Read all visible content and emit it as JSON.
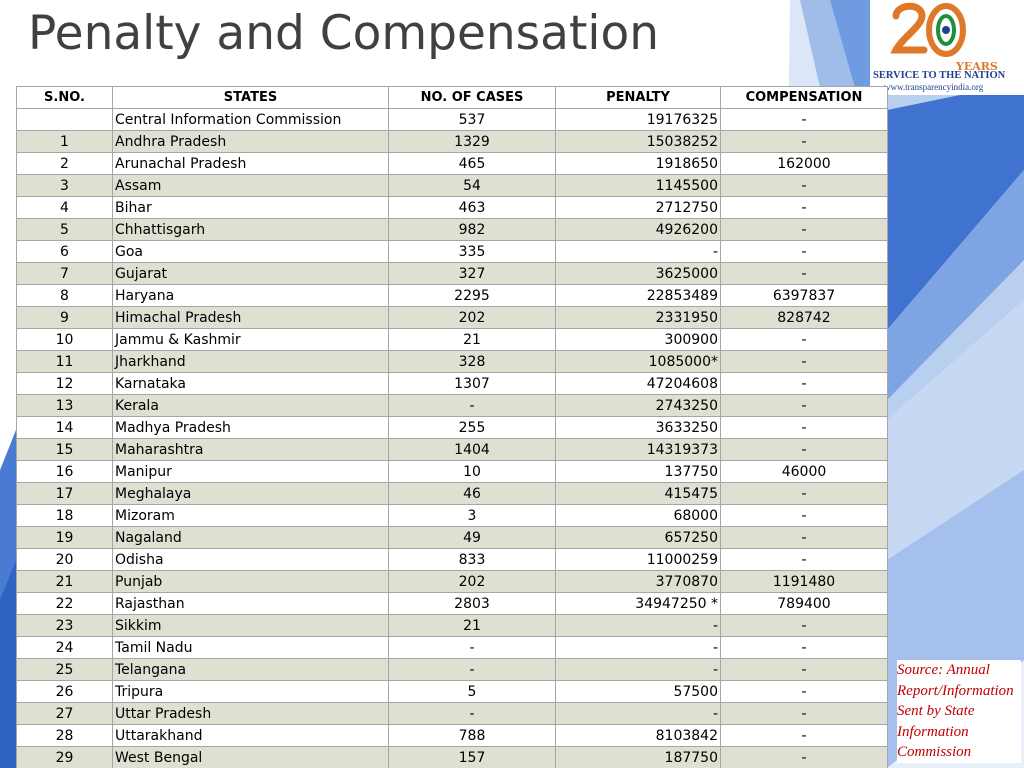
{
  "slide": {
    "title": "Penalty and Compensation",
    "logo": {
      "mark": "20",
      "years": "YEARS",
      "tagline": "SERVICE TO THE NATION",
      "url": "www.transparencyindia.org"
    },
    "source_note": "Source: Annual Report/Information Sent by State Information Commission"
  },
  "colors": {
    "title": "#404040",
    "row_shade": "#e0e0d2",
    "accent_blue": "#2e63c4",
    "source_text": "#c00000"
  },
  "table": {
    "headers": [
      "S.NO.",
      "STATES",
      "NO. OF CASES",
      "PENALTY",
      "COMPENSATION"
    ],
    "rows": [
      {
        "sno": "",
        "state": "Central Information Commission",
        "cases": "537",
        "penalty": "19176325",
        "compensation": "-"
      },
      {
        "sno": "1",
        "state": "Andhra Pradesh",
        "cases": "1329",
        "penalty": "15038252",
        "compensation": "-"
      },
      {
        "sno": "2",
        "state": "Arunachal Pradesh",
        "cases": "465",
        "penalty": "1918650",
        "compensation": "162000"
      },
      {
        "sno": "3",
        "state": "Assam",
        "cases": "54",
        "penalty": "1145500",
        "compensation": "-"
      },
      {
        "sno": "4",
        "state": "Bihar",
        "cases": "463",
        "penalty": "2712750",
        "compensation": "-"
      },
      {
        "sno": "5",
        "state": "Chhattisgarh",
        "cases": "982",
        "penalty": "4926200",
        "compensation": "-"
      },
      {
        "sno": "6",
        "state": "Goa",
        "cases": "335",
        "penalty": "-",
        "compensation": "-"
      },
      {
        "sno": "7",
        "state": "Gujarat",
        "cases": "327",
        "penalty": "3625000",
        "compensation": "-"
      },
      {
        "sno": "8",
        "state": "Haryana",
        "cases": "2295",
        "penalty": "22853489",
        "compensation": "6397837"
      },
      {
        "sno": "9",
        "state": "Himachal Pradesh",
        "cases": "202",
        "penalty": "2331950",
        "compensation": "828742"
      },
      {
        "sno": "10",
        "state": "Jammu & Kashmir",
        "cases": "21",
        "penalty": "300900",
        "compensation": "-"
      },
      {
        "sno": "11",
        "state": "Jharkhand",
        "cases": "328",
        "penalty": "1085000*",
        "compensation": "-"
      },
      {
        "sno": "12",
        "state": "Karnataka",
        "cases": "1307",
        "penalty": "47204608",
        "compensation": "-"
      },
      {
        "sno": "13",
        "state": "Kerala",
        "cases": "-",
        "penalty": "2743250",
        "compensation": "-"
      },
      {
        "sno": "14",
        "state": "Madhya Pradesh",
        "cases": "255",
        "penalty": "3633250",
        "compensation": "-"
      },
      {
        "sno": "15",
        "state": "Maharashtra",
        "cases": "1404",
        "penalty": "14319373",
        "compensation": "-"
      },
      {
        "sno": "16",
        "state": "Manipur",
        "cases": "10",
        "penalty": "137750",
        "compensation": "46000"
      },
      {
        "sno": "17",
        "state": "Meghalaya",
        "cases": "46",
        "penalty": "415475",
        "compensation": "-"
      },
      {
        "sno": "18",
        "state": "Mizoram",
        "cases": "3",
        "penalty": "68000",
        "compensation": "-"
      },
      {
        "sno": "19",
        "state": "Nagaland",
        "cases": "49",
        "penalty": "657250",
        "compensation": "-"
      },
      {
        "sno": "20",
        "state": "Odisha",
        "cases": "833",
        "penalty": "11000259",
        "compensation": "-"
      },
      {
        "sno": "21",
        "state": "Punjab",
        "cases": "202",
        "penalty": "3770870",
        "compensation": "1191480"
      },
      {
        "sno": "22",
        "state": "Rajasthan",
        "cases": "2803",
        "penalty": "34947250 *",
        "compensation": "789400"
      },
      {
        "sno": "23",
        "state": "Sikkim",
        "cases": "21",
        "penalty": "-",
        "compensation": "-"
      },
      {
        "sno": "24",
        "state": "Tamil Nadu",
        "cases": "-",
        "penalty": "-",
        "compensation": "-"
      },
      {
        "sno": "25",
        "state": "Telangana",
        "cases": "-",
        "penalty": "-",
        "compensation": "-"
      },
      {
        "sno": "26",
        "state": "Tripura",
        "cases": "5",
        "penalty": "57500",
        "compensation": "-"
      },
      {
        "sno": "27",
        "state": "Uttar Pradesh",
        "cases": "-",
        "penalty": "-",
        "compensation": "-"
      },
      {
        "sno": "28",
        "state": "Uttarakhand",
        "cases": "788",
        "penalty": "8103842",
        "compensation": "-"
      },
      {
        "sno": "29",
        "state": "West Bengal",
        "cases": "157",
        "penalty": "187750",
        "compensation": "-"
      }
    ]
  }
}
